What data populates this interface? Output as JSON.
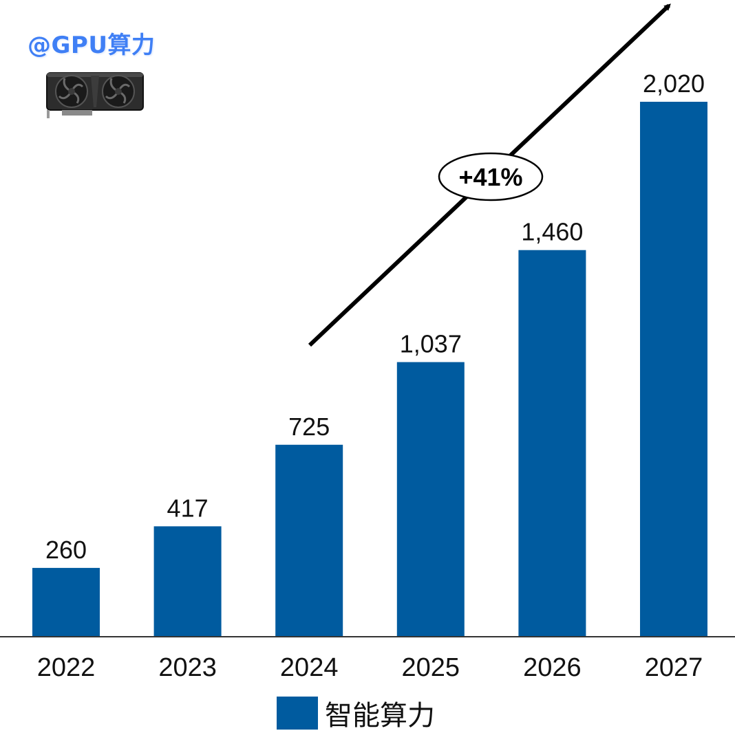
{
  "watermark": "@GPU算力",
  "colors": {
    "bar": "#005b9f",
    "axis": "#333333",
    "text": "#111111",
    "watermark": "#3f7ff5"
  },
  "icons": {
    "gpu": "gpu-card-icon"
  },
  "chart_data": {
    "type": "bar",
    "title": "",
    "xlabel": "",
    "ylabel": "",
    "categories": [
      "2022",
      "2023",
      "2024",
      "2025",
      "2026",
      "2027"
    ],
    "series": [
      {
        "name": "智能算力",
        "values": [
          260,
          417,
          725,
          1037,
          1460,
          2020
        ]
      }
    ],
    "data_labels": [
      "260",
      "417",
      "725",
      "1,037",
      "1,460",
      "2,020"
    ],
    "annotation": "+41%",
    "ylim": [
      0,
      2020
    ],
    "grid": false,
    "legend": "bottom-center"
  }
}
